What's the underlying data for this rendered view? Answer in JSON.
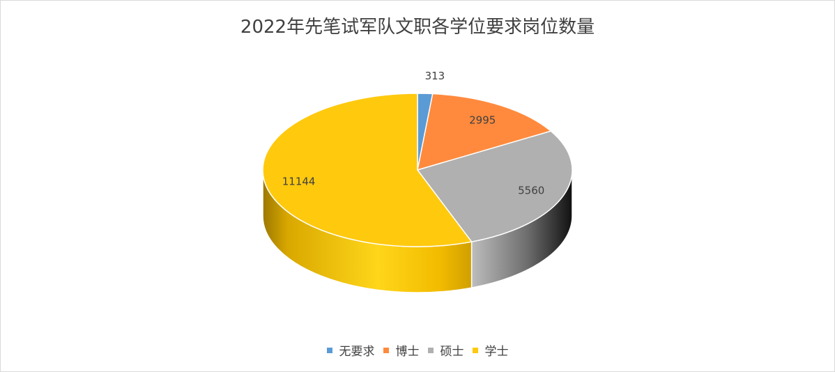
{
  "chart_data": {
    "type": "pie",
    "title": "2022年先笔试军队文职各学位要求岗位数量",
    "categories": [
      "无要求",
      "博士",
      "硕士",
      "学士"
    ],
    "values": [
      313,
      2995,
      5560,
      11144
    ],
    "colors": [
      "#5B9BD5",
      "#FF8A3D",
      "#B0B0B0",
      "#FFC90E"
    ],
    "data_labels": [
      "313",
      "2995",
      "5560",
      "11144"
    ],
    "legend_position": "bottom",
    "style": "3d"
  }
}
